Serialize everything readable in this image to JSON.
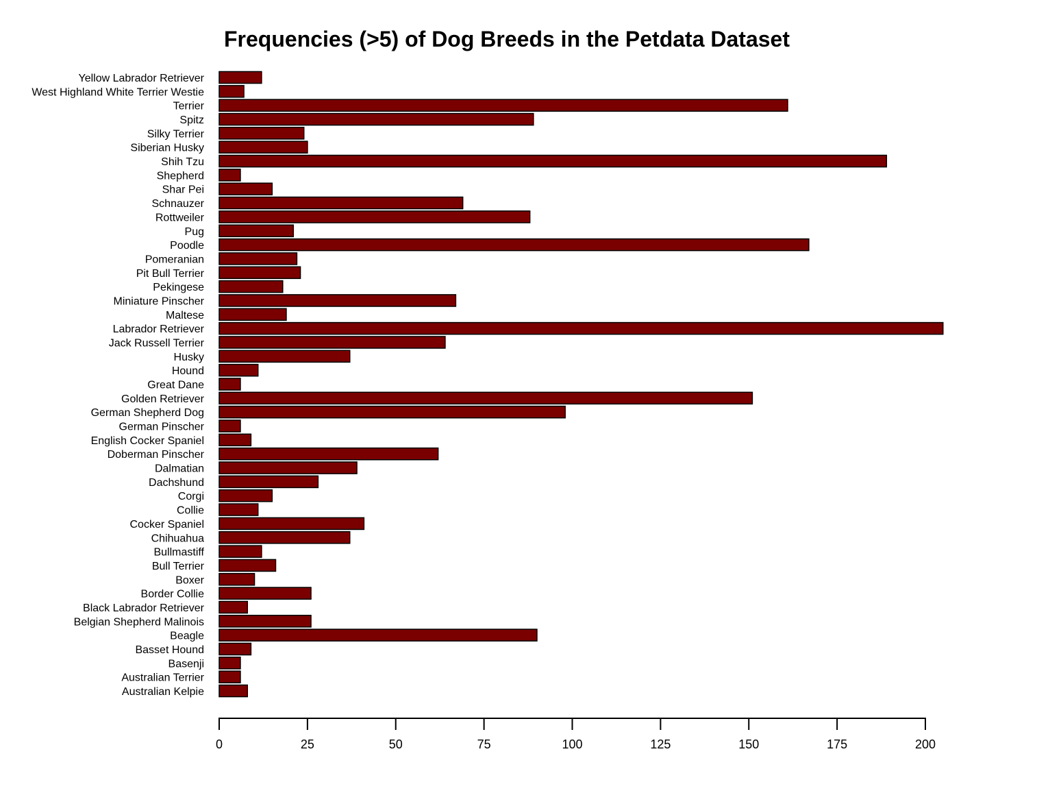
{
  "chart_data": {
    "type": "bar",
    "orientation": "horizontal",
    "title": "Frequencies (>5) of Dog Breeds in the Petdata Dataset",
    "xlabel": "",
    "ylabel": "",
    "xlim": [
      0,
      200
    ],
    "x_ticks": [
      0,
      25,
      50,
      75,
      100,
      125,
      150,
      175,
      200
    ],
    "grid": false,
    "bar_color": "#7a0000",
    "categories": [
      "Yellow Labrador Retriever",
      "West Highland White Terrier Westie",
      "Terrier",
      "Spitz",
      "Silky Terrier",
      "Siberian Husky",
      "Shih Tzu",
      "Shepherd",
      "Shar Pei",
      "Schnauzer",
      "Rottweiler",
      "Pug",
      "Poodle",
      "Pomeranian",
      "Pit Bull Terrier",
      "Pekingese",
      "Miniature Pinscher",
      "Maltese",
      "Labrador Retriever",
      "Jack Russell Terrier",
      "Husky",
      "Hound",
      "Great Dane",
      "Golden Retriever",
      "German Shepherd Dog",
      "German Pinscher",
      "English Cocker Spaniel",
      "Doberman Pinscher",
      "Dalmatian",
      "Dachshund",
      "Corgi",
      "Collie",
      "Cocker Spaniel",
      "Chihuahua",
      "Bullmastiff",
      "Bull Terrier",
      "Boxer",
      "Border Collie",
      "Black Labrador Retriever",
      "Belgian Shepherd Malinois",
      "Beagle",
      "Basset Hound",
      "Basenji",
      "Australian Terrier",
      "Australian Kelpie"
    ],
    "values": [
      12,
      7,
      161,
      89,
      24,
      25,
      189,
      6,
      15,
      69,
      88,
      21,
      167,
      22,
      23,
      18,
      67,
      19,
      205,
      64,
      37,
      11,
      6,
      151,
      98,
      6,
      9,
      62,
      39,
      28,
      15,
      11,
      41,
      37,
      12,
      16,
      10,
      26,
      8,
      26,
      90,
      9,
      6,
      6,
      8
    ]
  }
}
